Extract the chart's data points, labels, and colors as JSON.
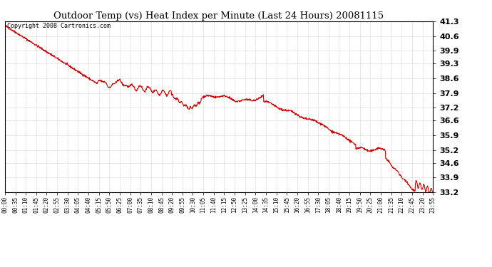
{
  "title": "Outdoor Temp (vs) Heat Index per Minute (Last 24 Hours) 20081115",
  "copyright_text": "Copyright 2008 Cartronics.com",
  "line_color": "#cc0000",
  "background_color": "#ffffff",
  "grid_color": "#c8c8c8",
  "ylim": [
    33.2,
    41.3
  ],
  "yticks": [
    33.2,
    33.9,
    34.6,
    35.2,
    35.9,
    36.6,
    37.2,
    37.9,
    38.6,
    39.3,
    39.9,
    40.6,
    41.3
  ],
  "xtick_labels": [
    "00:00",
    "00:35",
    "01:10",
    "01:45",
    "02:20",
    "02:55",
    "03:30",
    "04:05",
    "04:40",
    "05:15",
    "05:50",
    "06:25",
    "07:00",
    "07:35",
    "08:10",
    "08:45",
    "09:20",
    "09:55",
    "10:30",
    "11:05",
    "11:40",
    "12:15",
    "12:50",
    "13:25",
    "14:00",
    "14:35",
    "15:10",
    "15:45",
    "16:20",
    "16:55",
    "17:30",
    "18:05",
    "18:40",
    "19:15",
    "19:50",
    "20:25",
    "21:00",
    "21:35",
    "22:10",
    "22:45",
    "23:20",
    "23:55"
  ],
  "figsize": [
    6.9,
    3.75
  ],
  "dpi": 100
}
